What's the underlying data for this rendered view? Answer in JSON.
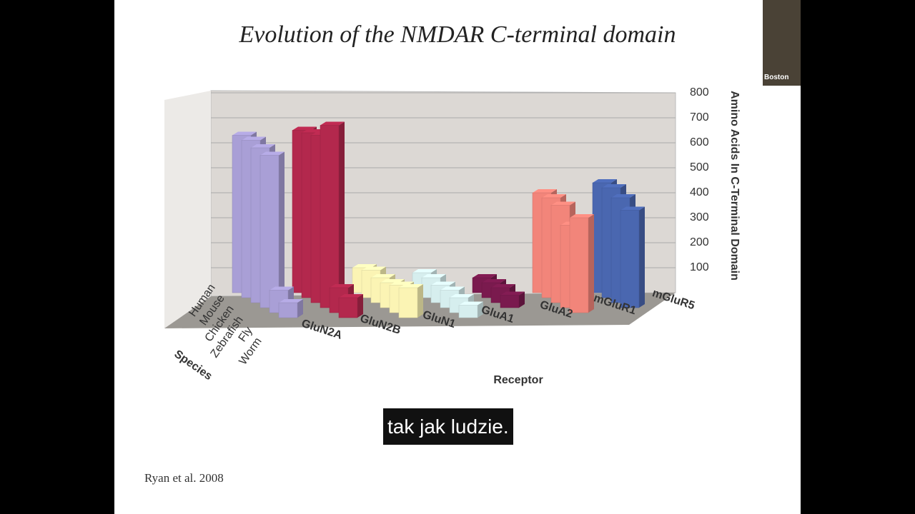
{
  "slide": {
    "title": "Evolution of the NMDAR C-terminal domain",
    "citation": "Ryan et al. 2008"
  },
  "caption": "tak jak ludzie.",
  "video": {
    "label": "Boston"
  },
  "chart_data": {
    "type": "bar3d",
    "x_label": "Receptor",
    "z_label": "Species",
    "y_label": "Amino Acids In C-Terminal Domain",
    "categories": [
      "GluN2A",
      "GluN2B",
      "GluN1",
      "GluA1",
      "GluA2",
      "mGluR1",
      "mGluR5"
    ],
    "colors": [
      "#a99fd6",
      "#b3284d",
      "#fbf4b4",
      "#d6eeee",
      "#7a1a4e",
      "#f2857a",
      "#4a67b0"
    ],
    "series": [
      {
        "name": "Human",
        "values": [
          630,
          650,
          100,
          80,
          60,
          400,
          440
        ]
      },
      {
        "name": "Mouse",
        "values": [
          630,
          660,
          110,
          80,
          60,
          400,
          440
        ]
      },
      {
        "name": "Chicken",
        "values": [
          620,
          670,
          100,
          70,
          60,
          390,
          420
        ]
      },
      {
        "name": "Zebrafish",
        "values": [
          610,
          730,
          100,
          70,
          50,
          330,
          390
        ]
      },
      {
        "name": "Fly",
        "values": [
          90,
          100,
          110,
          60,
          null,
          380,
          null
        ]
      },
      {
        "name": "Worm",
        "values": [
          60,
          80,
          120,
          50,
          null,
          null,
          null
        ]
      }
    ],
    "ylim": [
      0,
      800
    ],
    "yticks": [
      100,
      200,
      300,
      400,
      500,
      600,
      700,
      800
    ],
    "grid": true
  }
}
